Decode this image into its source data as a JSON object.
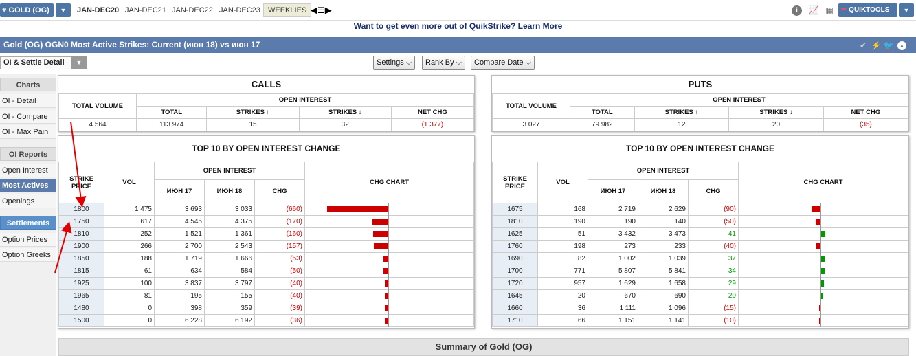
{
  "topbar": {
    "product_label": "GOLD (OG)",
    "tabs": [
      "JAN-DEC20",
      "JAN-DEC21",
      "JAN-DEC22",
      "JAN-DEC23",
      "WEEKLIES"
    ],
    "quiktools_label": "QUIKTOOLS"
  },
  "promo": "Want to get even more out of QuikStrike? Learn More",
  "title": "Gold (OG) OGN0 Most Active Strikes: Current (июн 18) vs июн 17",
  "controls": {
    "view_select": "OI & Settle Detail",
    "settings": "Settings",
    "rank_by": "Rank By",
    "compare_date": "Compare Date"
  },
  "sidebar": {
    "charts_head": "Charts",
    "charts_items": [
      "OI - Detail",
      "OI - Compare",
      "OI - Max Pain"
    ],
    "oi_head": "OI Reports",
    "oi_items": [
      "Open Interest",
      "Most Actives",
      "Openings"
    ],
    "settle_head": "Settlements",
    "settle_items": [
      "Option Prices",
      "Option Greeks"
    ]
  },
  "headers": {
    "total_volume": "TOTAL VOLUME",
    "open_interest": "OPEN INTEREST",
    "total": "TOTAL",
    "strikes_up": "STRIKES ↑",
    "strikes_down": "STRIKES ↓",
    "net_chg": "NET CHG",
    "top10": "TOP 10 BY OPEN INTEREST CHANGE",
    "strike_price": "STRIKE PRICE",
    "vol": "VOL",
    "jun17": "ИЮН 17",
    "jun18": "ИЮН 18",
    "chg": "CHG",
    "chg_chart": "CHG CHART"
  },
  "calls": {
    "title": "CALLS",
    "summary": {
      "total_volume": "4 564",
      "total": "113 974",
      "strikes_up": "15",
      "strikes_down": "32",
      "net_chg": "(1 377)"
    },
    "rows": [
      {
        "strike": "1800",
        "vol": "1 475",
        "jun17": "3 693",
        "jun18": "3 033",
        "chg": "(660)",
        "value": -660
      },
      {
        "strike": "1750",
        "vol": "617",
        "jun17": "4 545",
        "jun18": "4 375",
        "chg": "(170)",
        "value": -170
      },
      {
        "strike": "1810",
        "vol": "252",
        "jun17": "1 521",
        "jun18": "1 361",
        "chg": "(160)",
        "value": -160
      },
      {
        "strike": "1900",
        "vol": "266",
        "jun17": "2 700",
        "jun18": "2 543",
        "chg": "(157)",
        "value": -157
      },
      {
        "strike": "1850",
        "vol": "188",
        "jun17": "1 719",
        "jun18": "1 666",
        "chg": "(53)",
        "value": -53
      },
      {
        "strike": "1815",
        "vol": "61",
        "jun17": "634",
        "jun18": "584",
        "chg": "(50)",
        "value": -50
      },
      {
        "strike": "1925",
        "vol": "100",
        "jun17": "3 837",
        "jun18": "3 797",
        "chg": "(40)",
        "value": -40
      },
      {
        "strike": "1965",
        "vol": "81",
        "jun17": "195",
        "jun18": "155",
        "chg": "(40)",
        "value": -40
      },
      {
        "strike": "1480",
        "vol": "0",
        "jun17": "398",
        "jun18": "359",
        "chg": "(39)",
        "value": -39
      },
      {
        "strike": "1500",
        "vol": "0",
        "jun17": "6 228",
        "jun18": "6 192",
        "chg": "(36)",
        "value": -36
      }
    ]
  },
  "puts": {
    "title": "PUTS",
    "summary": {
      "total_volume": "3 027",
      "total": "79 982",
      "strikes_up": "12",
      "strikes_down": "20",
      "net_chg": "(35)"
    },
    "rows": [
      {
        "strike": "1675",
        "vol": "168",
        "jun17": "2 719",
        "jun18": "2 629",
        "chg": "(90)",
        "value": -90
      },
      {
        "strike": "1810",
        "vol": "190",
        "jun17": "190",
        "jun18": "140",
        "chg": "(50)",
        "value": -50
      },
      {
        "strike": "1625",
        "vol": "51",
        "jun17": "3 432",
        "jun18": "3 473",
        "chg": "41",
        "value": 41
      },
      {
        "strike": "1760",
        "vol": "198",
        "jun17": "273",
        "jun18": "233",
        "chg": "(40)",
        "value": -40
      },
      {
        "strike": "1690",
        "vol": "82",
        "jun17": "1 002",
        "jun18": "1 039",
        "chg": "37",
        "value": 37
      },
      {
        "strike": "1700",
        "vol": "771",
        "jun17": "5 807",
        "jun18": "5 841",
        "chg": "34",
        "value": 34
      },
      {
        "strike": "1720",
        "vol": "957",
        "jun17": "1 629",
        "jun18": "1 658",
        "chg": "29",
        "value": 29
      },
      {
        "strike": "1645",
        "vol": "20",
        "jun17": "670",
        "jun18": "690",
        "chg": "20",
        "value": 20
      },
      {
        "strike": "1660",
        "vol": "36",
        "jun17": "1 111",
        "jun18": "1 096",
        "chg": "(15)",
        "value": -15
      },
      {
        "strike": "1710",
        "vol": "66",
        "jun17": "1 151",
        "jun18": "1 141",
        "chg": "(10)",
        "value": -10
      }
    ]
  },
  "summary_bar": "Summary of Gold (OG)",
  "colors": {
    "negative": "#cc0000",
    "positive": "#009900",
    "accent": "#5a7bab"
  }
}
